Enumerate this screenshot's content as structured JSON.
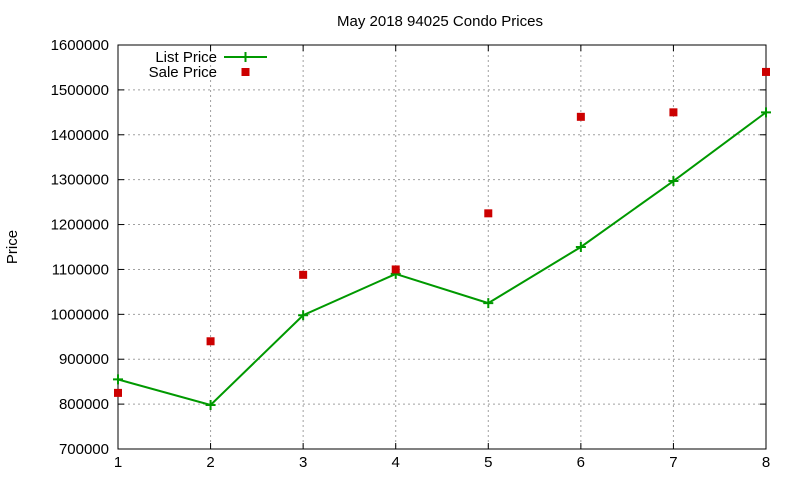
{
  "chart_data": {
    "type": "line",
    "title": "May 2018 94025 Condo Prices",
    "xlabel": "",
    "ylabel": "Price",
    "xlim": [
      1,
      8
    ],
    "ylim": [
      700000,
      1600000
    ],
    "x_ticks": [
      1,
      2,
      3,
      4,
      5,
      6,
      7,
      8
    ],
    "y_ticks": [
      700000,
      800000,
      900000,
      1000000,
      1100000,
      1200000,
      1300000,
      1400000,
      1500000,
      1600000
    ],
    "grid": true,
    "legend_position": "top-left",
    "x": [
      1,
      2,
      3,
      4,
      5,
      6,
      7,
      8
    ],
    "series": [
      {
        "name": "List Price",
        "style": "line-points",
        "marker": "plus",
        "color": "#009900",
        "values": [
          855000,
          798000,
          998000,
          1090000,
          1025000,
          1150000,
          1297000,
          1450000
        ]
      },
      {
        "name": "Sale Price",
        "style": "points",
        "marker": "square",
        "color": "#cc0000",
        "values": [
          825000,
          940000,
          1088000,
          1100000,
          1225000,
          1440000,
          1450000,
          1540000
        ]
      }
    ]
  }
}
